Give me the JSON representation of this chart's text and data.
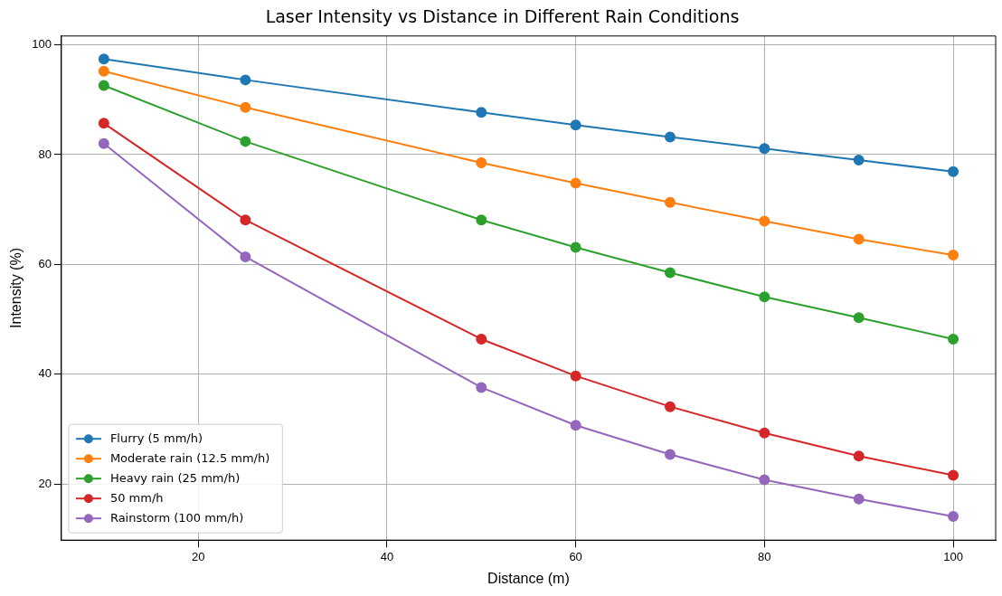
{
  "chart_data": {
    "type": "line",
    "title": "Laser Intensity vs Distance in Different Rain Conditions",
    "xlabel": "Distance (m)",
    "ylabel": "Intensity (%)",
    "x": [
      10,
      25,
      50,
      60,
      70,
      80,
      90,
      100
    ],
    "series": [
      {
        "name": "Flurry (5 mm/h)",
        "color": "#1f77b4",
        "values": [
          97.4,
          93.6,
          87.7,
          85.4,
          83.2,
          81.1,
          79.0,
          76.9
        ]
      },
      {
        "name": "Moderate rain (12.5 mm/h)",
        "color": "#ff7f0e",
        "values": [
          95.2,
          88.6,
          78.5,
          74.8,
          71.3,
          67.9,
          64.6,
          61.7
        ]
      },
      {
        "name": "Heavy rain (25 mm/h)",
        "color": "#2ca02c",
        "values": [
          92.6,
          82.4,
          68.1,
          63.1,
          58.5,
          54.1,
          50.3,
          46.4
        ]
      },
      {
        "name": "50 mm/h",
        "color": "#d62728",
        "values": [
          85.7,
          68.1,
          46.4,
          39.7,
          34.1,
          29.3,
          25.1,
          21.6
        ]
      },
      {
        "name": "Rainstorm (100 mm/h)",
        "color": "#9467bd",
        "values": [
          82.0,
          61.4,
          37.6,
          30.7,
          25.4,
          20.8,
          17.3,
          14.1
        ]
      }
    ],
    "xlim": [
      5.5,
      104.5
    ],
    "xticks": [
      20,
      40,
      60,
      80,
      100
    ],
    "ylim": [
      9.8,
      101.6
    ],
    "yticks": [
      20,
      40,
      60,
      80,
      100
    ],
    "grid": true,
    "legend": "bottom left",
    "marker": "circle",
    "line_style": "solid"
  }
}
